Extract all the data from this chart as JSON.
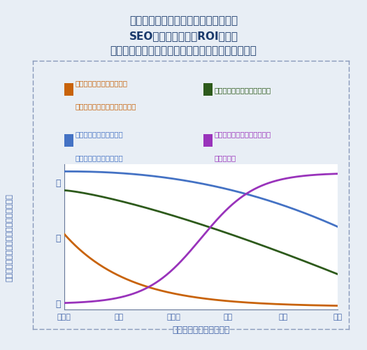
{
  "title_line1": "各種リンクビルディングから得られる",
  "title_line2": "SEOの投資対効果（ROI）は、",
  "title_line3": "ブランドの規模とリーチ（到達度）によって変わる",
  "xlabel": "サイトの到達度／成熟度",
  "ylabel_chars": [
    "サ",
    "イ",
    "ト",
    "の",
    "リ",
    "ン",
    "ク",
    "プ",
    "ロ",
    "フ",
    "ァ",
    "イ",
    "ル",
    "に",
    "対",
    "す",
    "る",
    "価",
    "値"
  ],
  "xtick_labels": [
    "創設期",
    "初期",
    "発展期",
    "確立",
    "強大",
    "巨大"
  ],
  "ytick_labels": [
    "低",
    "中",
    "高"
  ],
  "legend": [
    {
      "label1": "手作業によるリンク依頼、",
      "label2": "ディレクトリ、記事の投稿など",
      "color": "#c8630a"
    },
    {
      "label1": "メディアの注目＋広報／報道",
      "label2": "",
      "color": "#2d5a1b"
    },
    {
      "label1": "リンクベイト＋バイラル",
      "label2": "コンテンツの作成と宣伝",
      "color": "#4472c4"
    },
    {
      "label1": "コンテンツのライセンス供与",
      "label2": "＋提携契約",
      "color": "#9933bb"
    }
  ],
  "bg_outer": "#e8eef5",
  "bg_plot": "#f5f8fc",
  "border_color": "#8899bb",
  "title_color": "#1a3a6c",
  "text_color": "#4466aa",
  "line_width": 2.0
}
